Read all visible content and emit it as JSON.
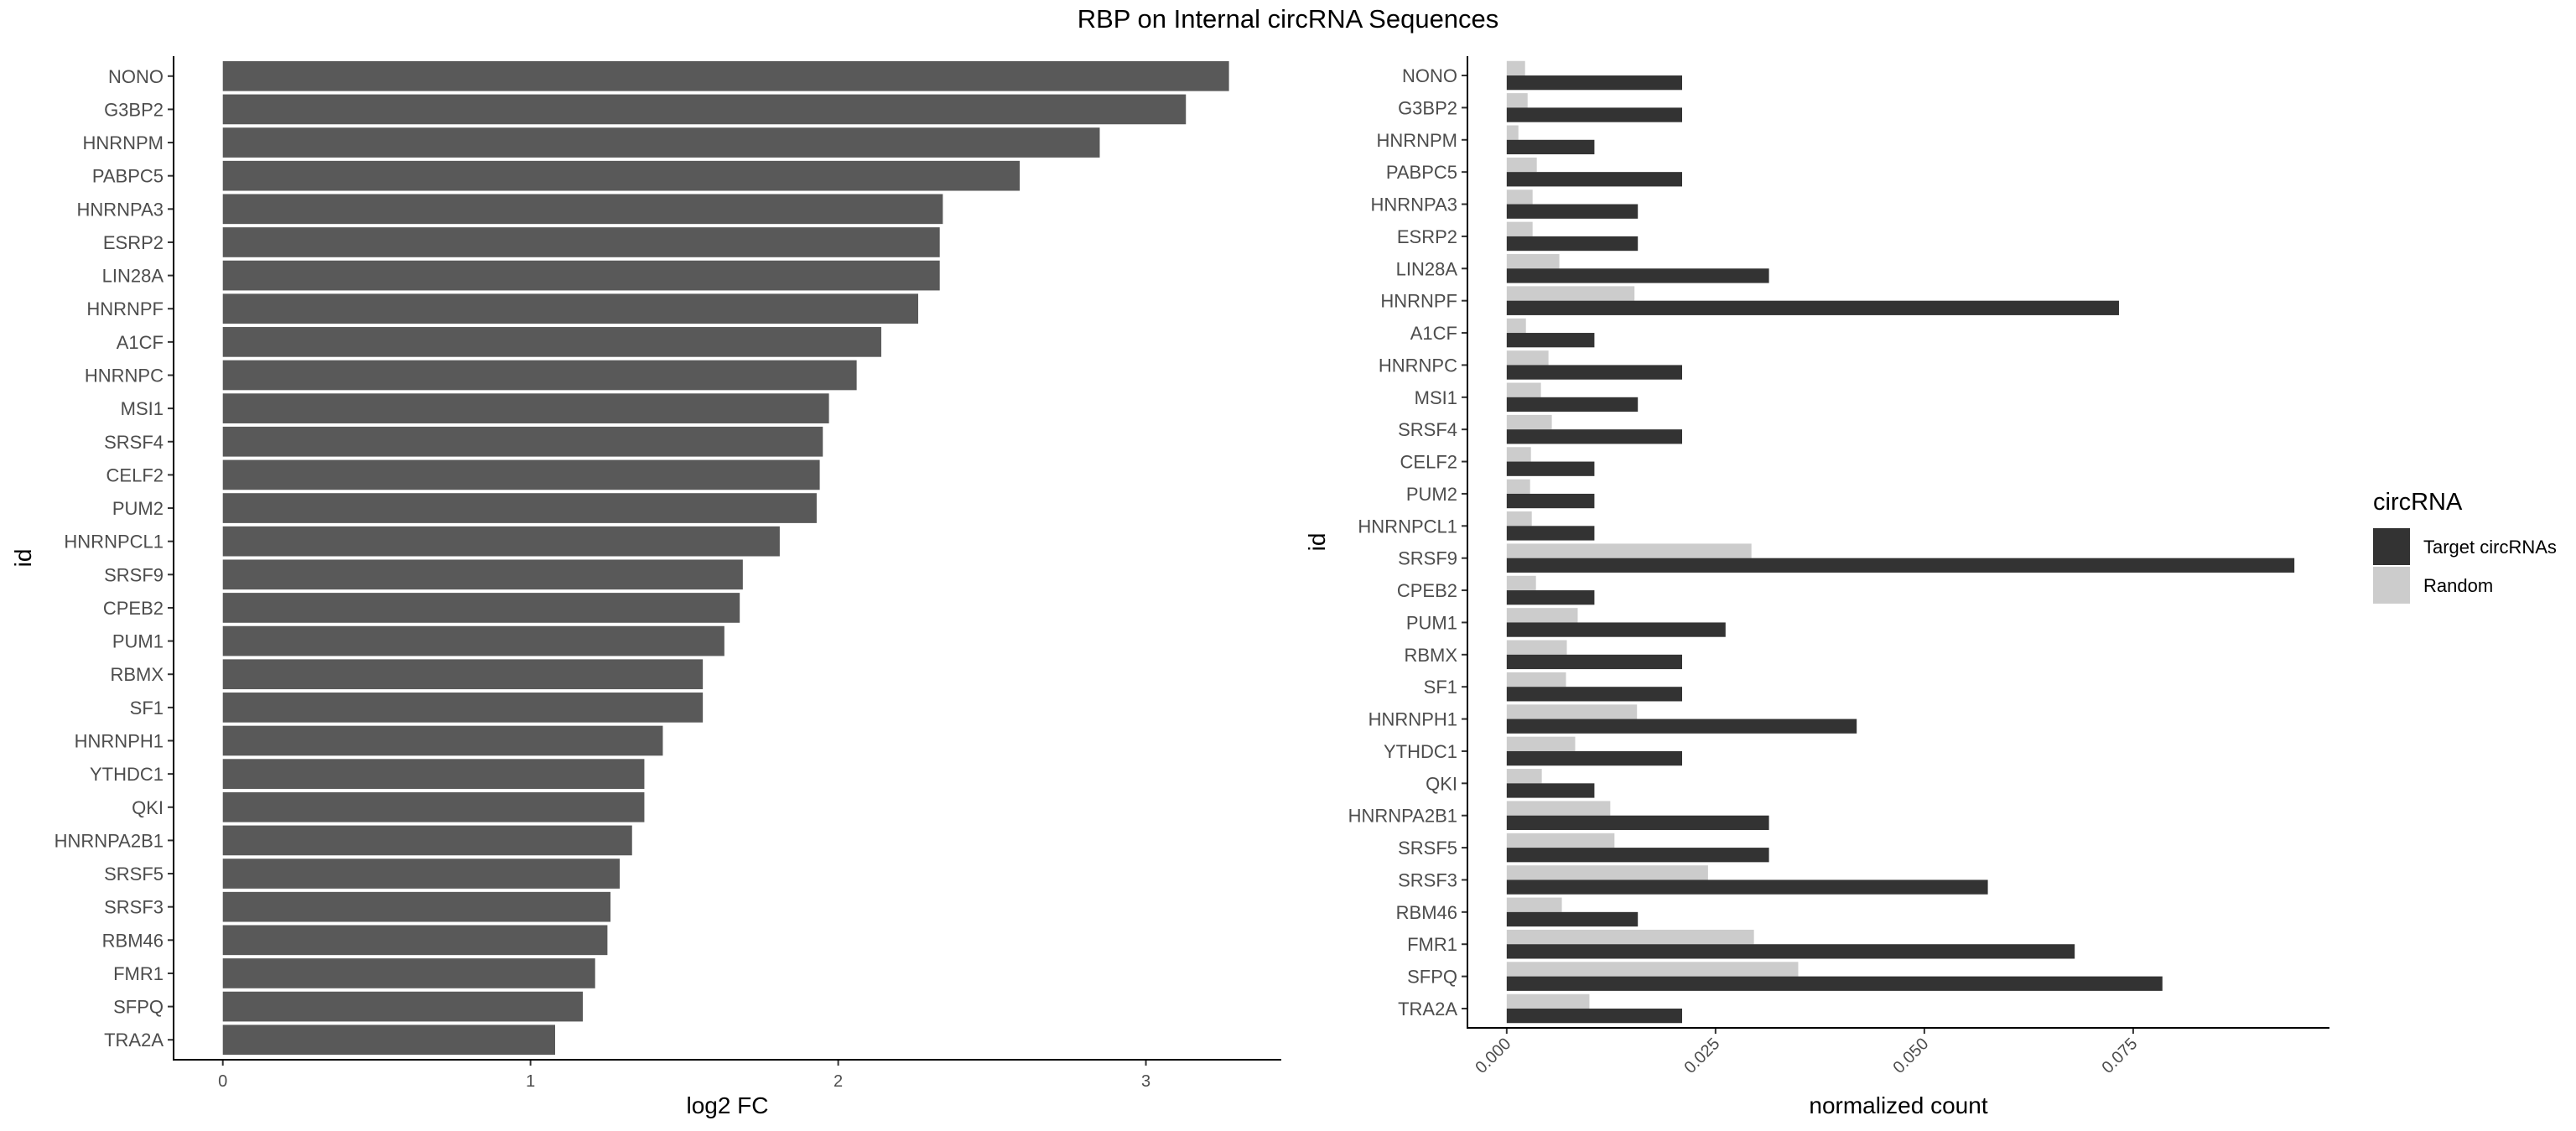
{
  "title": "RBP on Internal circRNA Sequences",
  "chart_data": [
    {
      "type": "bar",
      "orientation": "horizontal",
      "xlabel": "log2 FC",
      "ylabel": "id",
      "xlim": [
        -0.16,
        3.44
      ],
      "xticks": [
        0,
        1,
        2,
        3
      ],
      "xtick_labels": [
        "0",
        "1",
        "2",
        "3"
      ],
      "grid": false,
      "categories": [
        "NONO",
        "G3BP2",
        "HNRNPM",
        "PABPC5",
        "HNRNPA3",
        "ESRP2",
        "LIN28A",
        "HNRNPF",
        "A1CF",
        "HNRNPC",
        "MSI1",
        "SRSF4",
        "CELF2",
        "PUM2",
        "HNRNPCL1",
        "SRSF9",
        "CPEB2",
        "PUM1",
        "RBMX",
        "SF1",
        "HNRNPH1",
        "YTHDC1",
        "QKI",
        "HNRNPA2B1",
        "SRSF5",
        "SRSF3",
        "RBM46",
        "FMR1",
        "SFPQ",
        "TRA2A"
      ],
      "values": [
        3.27,
        3.13,
        2.85,
        2.59,
        2.34,
        2.33,
        2.33,
        2.26,
        2.14,
        2.06,
        1.97,
        1.95,
        1.94,
        1.93,
        1.81,
        1.69,
        1.68,
        1.63,
        1.56,
        1.56,
        1.43,
        1.37,
        1.37,
        1.33,
        1.29,
        1.26,
        1.25,
        1.21,
        1.17,
        1.08
      ],
      "bar_color": "#595959"
    },
    {
      "type": "bar",
      "orientation": "horizontal",
      "grouped": true,
      "xlabel": "normalized count",
      "ylabel": "id",
      "xlim": [
        -0.0047,
        0.0985
      ],
      "xticks": [
        0,
        0.025,
        0.05,
        0.075
      ],
      "xtick_labels": [
        "0.000",
        "0.025",
        "0.050",
        "0.075"
      ],
      "grid": false,
      "categories": [
        "NONO",
        "G3BP2",
        "HNRNPM",
        "PABPC5",
        "HNRNPA3",
        "ESRP2",
        "LIN28A",
        "HNRNPF",
        "A1CF",
        "HNRNPC",
        "MSI1",
        "SRSF4",
        "CELF2",
        "PUM2",
        "HNRNPCL1",
        "SRSF9",
        "CPEB2",
        "PUM1",
        "RBMX",
        "SF1",
        "HNRNPH1",
        "YTHDC1",
        "QKI",
        "HNRNPA2B1",
        "SRSF5",
        "SRSF3",
        "RBM46",
        "FMR1",
        "SFPQ",
        "TRA2A"
      ],
      "series": [
        {
          "name": "Target circRNAs",
          "color": "#333333",
          "values": [
            0.021,
            0.021,
            0.0105,
            0.021,
            0.0157,
            0.0157,
            0.0314,
            0.0733,
            0.0105,
            0.021,
            0.0157,
            0.021,
            0.0105,
            0.0105,
            0.0105,
            0.0943,
            0.0105,
            0.0262,
            0.021,
            0.021,
            0.0419,
            0.021,
            0.0105,
            0.0314,
            0.0314,
            0.0576,
            0.0157,
            0.068,
            0.0785,
            0.021
          ]
        },
        {
          "name": "Random",
          "color": "#cccccc",
          "values": [
            0.0022,
            0.0025,
            0.0014,
            0.0036,
            0.0031,
            0.0031,
            0.0063,
            0.0153,
            0.0023,
            0.005,
            0.0041,
            0.0054,
            0.0029,
            0.0028,
            0.003,
            0.0293,
            0.0035,
            0.0085,
            0.0072,
            0.0071,
            0.0156,
            0.0082,
            0.0042,
            0.0124,
            0.0129,
            0.0241,
            0.0066,
            0.0296,
            0.0349,
            0.0099
          ]
        }
      ],
      "legend": {
        "title": "circRNA",
        "position": "right",
        "entries": [
          "Target circRNAs",
          "Random"
        ]
      }
    }
  ]
}
